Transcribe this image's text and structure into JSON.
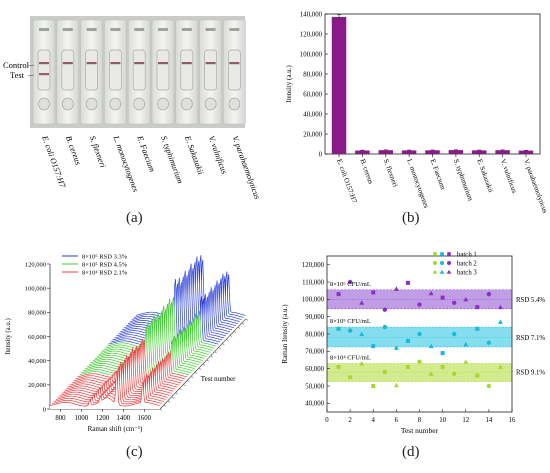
{
  "labels": {
    "a": "(a)",
    "b": "(b)",
    "c": "(c)",
    "d": "(d)"
  },
  "panel_a": {
    "line_labels": [
      "Control",
      "Test"
    ],
    "strips": [
      {
        "name": "E. coli O157:H7",
        "test_line": true
      },
      {
        "name": "B. cereus",
        "test_line": false
      },
      {
        "name": "S. flexneri",
        "test_line": false
      },
      {
        "name": "L. monocytogenes",
        "test_line": false
      },
      {
        "name": "E. Faecium",
        "test_line": false
      },
      {
        "name": "S. typhimurium",
        "test_line": false
      },
      {
        "name": "E. Sakazakii",
        "test_line": false
      },
      {
        "name": "V. vulnificus",
        "test_line": false
      },
      {
        "name": "V. parahaemolyticus",
        "test_line": false
      }
    ]
  },
  "chart_data": [
    {
      "id": "b",
      "type": "bar",
      "ylabel": "Itensity (a.u.)",
      "xlabel": "",
      "ylim": [
        0,
        140000
      ],
      "yticks": [
        "0",
        "20,000",
        "40,000",
        "60,000",
        "80,000",
        "100,000",
        "120,000",
        "140,000"
      ],
      "yticks_values": [
        0,
        20000,
        40000,
        60000,
        80000,
        100000,
        120000,
        140000
      ],
      "categories": [
        "E. coli O157:H7",
        "B. cereus",
        "S. flexneri",
        "L. monocytogenes",
        "E. Faecium",
        "S. typhimurium",
        "E. Sakazakii",
        "V. vulnificus",
        "V. parahaemolyticus"
      ],
      "values": [
        137000,
        3500,
        3800,
        3600,
        3700,
        3900,
        3600,
        3800,
        3400
      ],
      "errors": [
        2500,
        300,
        300,
        300,
        300,
        300,
        300,
        300,
        300
      ],
      "color": "#8b1a89"
    },
    {
      "id": "c",
      "type": "line",
      "xlabel": "Raman shift (cm⁻¹)",
      "ylabel": "Itensity (a.u.)",
      "zlabel": "Test number",
      "xticks": [
        "800",
        "1000",
        "1200",
        "1400",
        "1600"
      ],
      "xticks_values": [
        800,
        1000,
        1200,
        1400,
        1600
      ],
      "yticks": [
        "0",
        "20,000",
        "40,000",
        "60,000",
        "80,000",
        "100,000",
        "120,000"
      ],
      "yticks_values": [
        0,
        20000,
        40000,
        60000,
        80000,
        100000,
        120000
      ],
      "legend": [
        {
          "label": "8×10⁶ RSD 3.3%",
          "color": "#2a3fd6"
        },
        {
          "label": "8×10⁵ RSD 4.5%",
          "color": "#3fcc2e"
        },
        {
          "label": "8×10⁴ RSD 2.1%",
          "color": "#e83c3c"
        }
      ],
      "series_count_per_group": 15,
      "peaks": [
        {
          "shift": 1337,
          "height": {
            "red": 0.62,
            "green": 0.8,
            "blue": 1.0
          }
        },
        {
          "shift": 1585,
          "height": {
            "red": 0.4,
            "green": 0.55,
            "blue": 0.72
          }
        },
        {
          "shift": 1080,
          "height": {
            "red": 0.12,
            "green": 0.15,
            "blue": 0.2
          }
        },
        {
          "shift": 1180,
          "height": {
            "red": 0.1,
            "green": 0.13,
            "blue": 0.18
          }
        }
      ]
    },
    {
      "id": "d",
      "type": "scatter",
      "xlabel": "Test number",
      "ylabel": "Raman Itensity (a.u.)",
      "xlim": [
        0,
        16
      ],
      "ylim": [
        35000,
        125000
      ],
      "xticks": [
        "0",
        "2",
        "4",
        "6",
        "8",
        "10",
        "12",
        "14",
        "16"
      ],
      "xticks_values": [
        0,
        2,
        4,
        6,
        8,
        10,
        12,
        14,
        16
      ],
      "yticks": [
        "40,000",
        "50,000",
        "60,000",
        "70,000",
        "80,000",
        "90,000",
        "100,000",
        "110,000",
        "120,000"
      ],
      "yticks_values": [
        40000,
        50000,
        60000,
        70000,
        80000,
        90000,
        100000,
        110000,
        120000
      ],
      "legend": [
        "batch 1",
        "batch 2",
        "batch 3"
      ],
      "groups": [
        {
          "label": "8×10⁶ CFU/mL",
          "rsd": "RSD 5.4%",
          "color": "#8b2fc9",
          "band_color": "#b58de0",
          "mean": 100000,
          "band": [
            94500,
            105500
          ],
          "x": [
            1,
            2,
            3,
            4,
            5,
            6,
            7,
            8,
            9,
            10,
            11,
            12,
            13,
            14,
            15
          ],
          "y": [
            103000,
            110000,
            98000,
            104000,
            94000,
            106000,
            109500,
            97000,
            103500,
            101000,
            98000,
            100000,
            95500,
            103000,
            95500
          ]
        },
        {
          "label": "8×10⁵ CFU/mL",
          "rsd": "RSD 7.1%",
          "color": "#1bb8d8",
          "band_color": "#6fd8ec",
          "mean": 78000,
          "band": [
            72500,
            84000
          ],
          "x": [
            1,
            2,
            3,
            4,
            5,
            6,
            7,
            8,
            9,
            10,
            11,
            12,
            13,
            14,
            15
          ],
          "y": [
            83000,
            82000,
            80000,
            73000,
            84000,
            72000,
            76000,
            80000,
            73000,
            69000,
            80000,
            74000,
            83000,
            75000,
            87000
          ]
        },
        {
          "label": "8×10⁴ CFU/mL",
          "rsd": "RSD 9.1%",
          "color": "#a8d630",
          "band_color": "#cbe87a",
          "mean": 58000,
          "band": [
            52500,
            63000
          ],
          "x": [
            1,
            2,
            3,
            4,
            5,
            6,
            7,
            8,
            9,
            10,
            11,
            12,
            13,
            14,
            15
          ],
          "y": [
            61000,
            55000,
            63000,
            50000,
            58000,
            50500,
            61000,
            64000,
            57000,
            61000,
            57000,
            64000,
            56000,
            50000,
            61000
          ]
        }
      ]
    }
  ]
}
